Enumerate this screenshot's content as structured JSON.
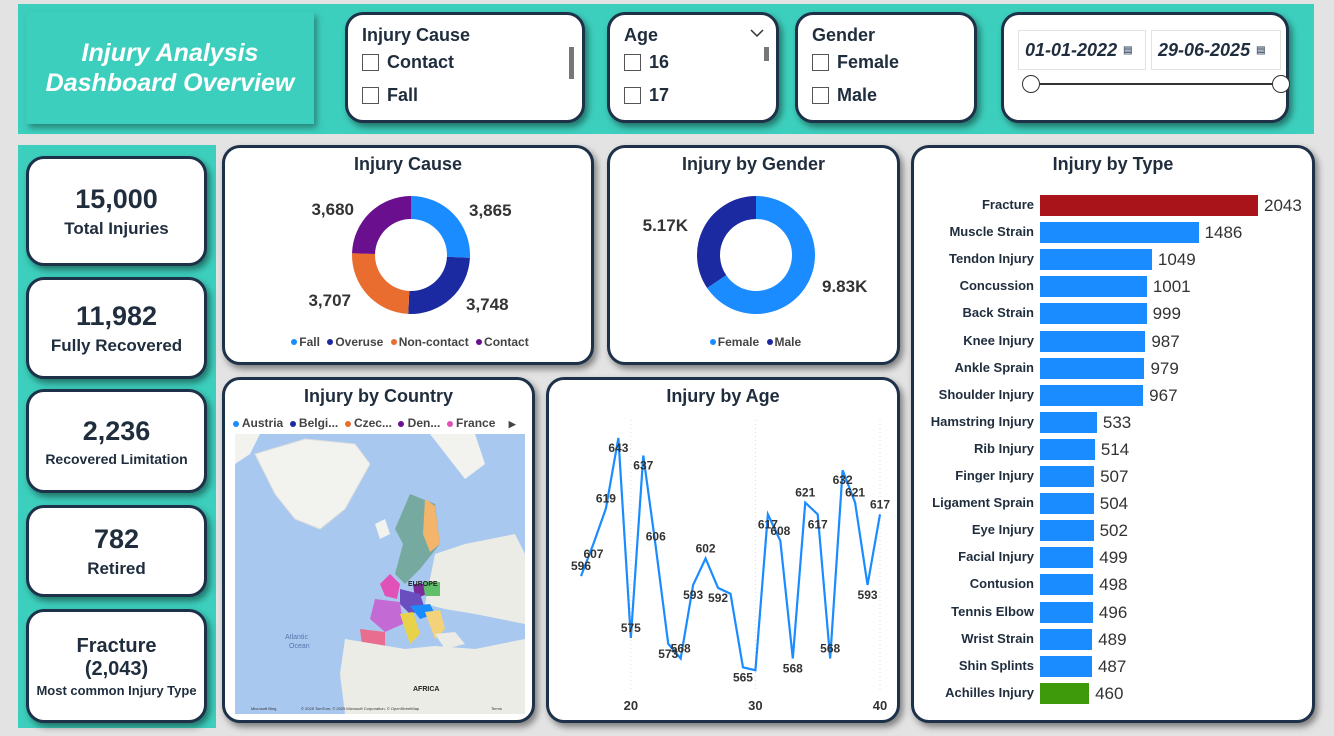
{
  "title_line1": "Injury Analysis",
  "title_line2": "Dashboard Overview",
  "colors": {
    "teal": "#3dcfbd",
    "navy": "#1d3149",
    "blue": "#1a8cff",
    "darkblue": "#1b2aa0",
    "orange": "#e86d2f",
    "purple": "#6a0f8e",
    "red": "#a8141a",
    "green": "#3e9a0a"
  },
  "slicers": {
    "cause": {
      "title": "Injury Cause",
      "options": [
        "Contact",
        "Fall"
      ]
    },
    "age": {
      "title": "Age",
      "options": [
        "16",
        "17"
      ]
    },
    "gender": {
      "title": "Gender",
      "options": [
        "Female",
        "Male"
      ]
    },
    "date": {
      "start": "01-01-2022",
      "end": "29-06-2025"
    }
  },
  "kpis": [
    {
      "value": "15,000",
      "label": "Total Injuries"
    },
    {
      "value": "11,982",
      "label": "Fully Recovered"
    },
    {
      "value": "2,236",
      "label": "Recovered Limitation"
    },
    {
      "value": "782",
      "label": "Retired"
    },
    {
      "value": "Fracture",
      "value2": "(2,043)",
      "label": "Most common Injury Type"
    }
  ],
  "charts": {
    "cause": {
      "title": "Injury Cause"
    },
    "gender": {
      "title": "Injury by Gender"
    },
    "country": {
      "title": "Injury by Country",
      "legend": [
        "Austria",
        "Belgi...",
        "Czec...",
        "Den...",
        "France"
      ],
      "labels": {
        "europe": "EUROPE",
        "africa": "AFRICA",
        "atlantic1": "Atlantic",
        "atlantic2": "Ocean",
        "credits": "© 2025 TomTom, © 2025 Microsoft Corporation, © OpenStreetMap",
        "terms": "Terms",
        "bing": "Microsoft Bing"
      }
    },
    "age": {
      "title": "Injury by Age"
    },
    "type": {
      "title": "Injury by Type"
    }
  },
  "chart_data": [
    {
      "type": "pie",
      "title": "Injury Cause",
      "categories": [
        "Fall",
        "Overuse",
        "Non-contact",
        "Contact"
      ],
      "values": [
        3865,
        3748,
        3707,
        3680
      ],
      "labels": [
        "3,865",
        "3,748",
        "3,707",
        "3,680"
      ],
      "colors": [
        "#1a8cff",
        "#1b2aa0",
        "#e86d2f",
        "#6a0f8e"
      ],
      "legend": "bottom"
    },
    {
      "type": "pie",
      "title": "Injury by Gender",
      "categories": [
        "Female",
        "Male"
      ],
      "values": [
        9830,
        5170
      ],
      "labels": [
        "9.83K",
        "5.17K"
      ],
      "colors": [
        "#1a8cff",
        "#1b2aa0"
      ],
      "legend": "bottom"
    },
    {
      "type": "line",
      "title": "Injury by Age",
      "x": [
        16,
        17,
        18,
        19,
        20,
        21,
        22,
        23,
        24,
        25,
        26,
        27,
        28,
        29,
        30,
        31,
        32,
        33,
        34,
        35,
        36,
        37,
        38,
        39,
        40
      ],
      "values": [
        596,
        607,
        619,
        643,
        575,
        637,
        606,
        573,
        568,
        593,
        602,
        592,
        590,
        565,
        564,
        617,
        608,
        568,
        621,
        617,
        568,
        632,
        621,
        593,
        617
      ],
      "point_labels": [
        "596",
        "607",
        "619",
        "643",
        "575",
        "637",
        "606",
        "573",
        "568",
        "593",
        "602",
        "592",
        "",
        "565",
        "",
        "617",
        "608",
        "568",
        "621",
        "617",
        "568",
        "632",
        "621",
        "593",
        "617"
      ],
      "xticks": [
        "20",
        "30",
        "40"
      ],
      "xtick_values": [
        20,
        30,
        40
      ]
    },
    {
      "type": "bar",
      "orientation": "horizontal",
      "title": "Injury by Type",
      "categories": [
        "Fracture",
        "Muscle Strain",
        "Tendon Injury",
        "Concussion",
        "Back Strain",
        "Knee Injury",
        "Ankle Sprain",
        "Shoulder Injury",
        "Hamstring Injury",
        "Rib Injury",
        "Finger Injury",
        "Ligament Sprain",
        "Eye Injury",
        "Facial Injury",
        "Contusion",
        "Tennis Elbow",
        "Wrist Strain",
        "Shin Splints",
        "Achilles Injury"
      ],
      "values": [
        2043,
        1486,
        1049,
        1001,
        999,
        987,
        979,
        967,
        533,
        514,
        507,
        504,
        502,
        499,
        498,
        496,
        489,
        487,
        460
      ],
      "highlight": {
        "max": "#a8141a",
        "min": "#3e9a0a",
        "default": "#1a8cff"
      }
    }
  ]
}
